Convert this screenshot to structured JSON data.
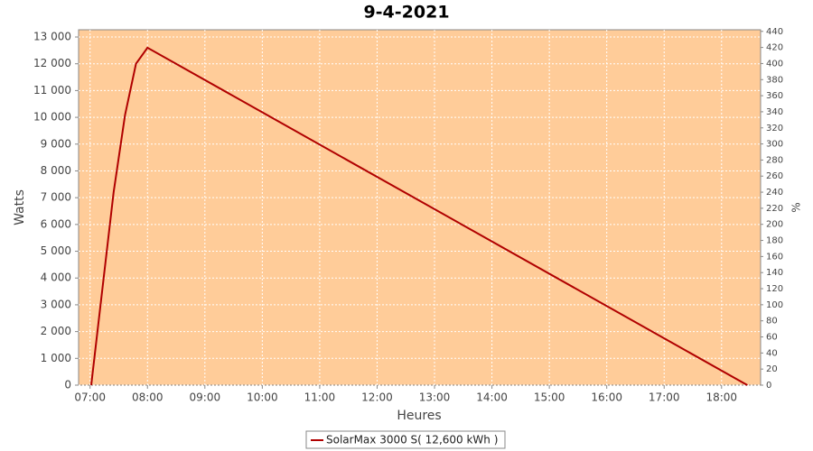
{
  "chart_data": {
    "type": "line",
    "title": "9-4-2021",
    "x_label": "Heures",
    "y_label": "Watts",
    "y2_label": "%",
    "x": [
      7.02,
      7.41,
      7.61,
      7.8,
      8.0,
      18.45
    ],
    "series": [
      {
        "name": "SolarMax 3000 S( 12,600 kWh )",
        "color": "#b00000",
        "values": [
          0,
          7200,
          10100,
          12000,
          12600,
          0
        ]
      }
    ],
    "xlim": [
      6.8,
      18.68
    ],
    "xticks": [
      {
        "value": 7,
        "label": "07:00"
      },
      {
        "value": 8,
        "label": "08:00"
      },
      {
        "value": 9,
        "label": "09:00"
      },
      {
        "value": 10,
        "label": "10:00"
      },
      {
        "value": 11,
        "label": "11:00"
      },
      {
        "value": 12,
        "label": "12:00"
      },
      {
        "value": 13,
        "label": "13:00"
      },
      {
        "value": 14,
        "label": "14:00"
      },
      {
        "value": 15,
        "label": "15:00"
      },
      {
        "value": 16,
        "label": "16:00"
      },
      {
        "value": 17,
        "label": "17:00"
      },
      {
        "value": 18,
        "label": "18:00"
      }
    ],
    "ylim": [
      0,
      13270
    ],
    "yticks": [
      0,
      {
        "value": 1000,
        "label": "1 000"
      },
      {
        "value": 2000,
        "label": "2 000"
      },
      {
        "value": 3000,
        "label": "3 000"
      },
      {
        "value": 4000,
        "label": "4 000"
      },
      {
        "value": 5000,
        "label": "5 000"
      },
      {
        "value": 6000,
        "label": "6 000"
      },
      {
        "value": 7000,
        "label": "7 000"
      },
      {
        "value": 8000,
        "label": "8 000"
      },
      {
        "value": 9000,
        "label": "9 000"
      },
      {
        "value": 10000,
        "label": "10 000"
      },
      {
        "value": 11000,
        "label": "11 000"
      },
      {
        "value": 12000,
        "label": "12 000"
      },
      {
        "value": 13000,
        "label": "13 000"
      }
    ],
    "y2lim": [
      0,
      442
    ],
    "y2ticks": [
      0,
      20,
      40,
      60,
      80,
      100,
      120,
      140,
      160,
      180,
      200,
      220,
      240,
      260,
      280,
      300,
      320,
      340,
      360,
      380,
      400,
      420,
      440
    ],
    "grid": true,
    "background": "#ffcc99",
    "legend": "bottom"
  }
}
